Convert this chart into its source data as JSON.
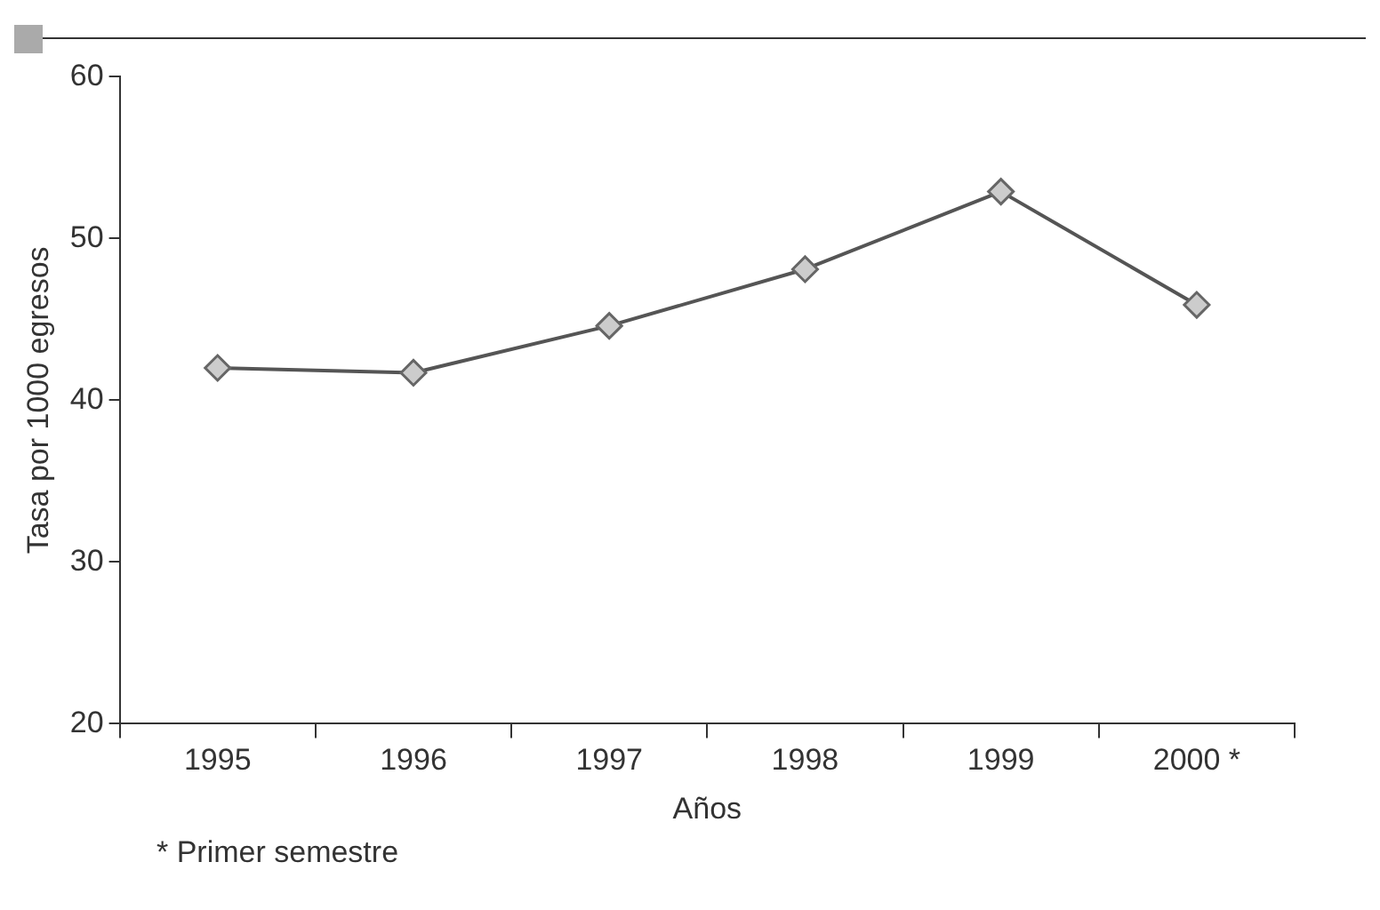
{
  "chart_data": {
    "type": "line",
    "xlabel": "Años",
    "ylabel": "Tasa por 1000 egresos",
    "categories": [
      "1995",
      "1996",
      "1997",
      "1998",
      "1999",
      "2000 *"
    ],
    "series": [
      {
        "color": "#555555",
        "values": [
          42.0,
          41.7,
          44.6,
          48.1,
          52.9,
          45.9
        ]
      }
    ],
    "ylim": [
      20,
      60
    ],
    "yticks": [
      20,
      30,
      40,
      50,
      60
    ],
    "grid": false,
    "legend": false,
    "marker": "diamond",
    "line_style": "solid",
    "annotations": [
      "* Primer semestre"
    ]
  }
}
